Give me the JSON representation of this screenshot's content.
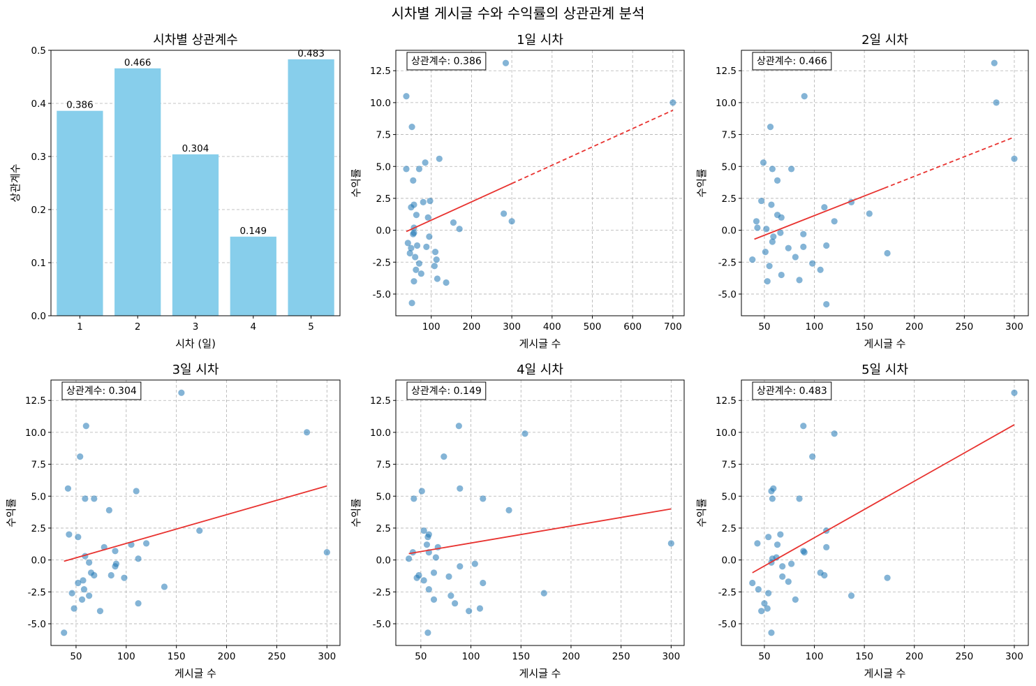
{
  "suptitle": "시차별 게시글 수와 수익률의 상관관계 분석",
  "colors": {
    "bar": "#87ceeb",
    "point": "#1f77b4",
    "trend": "#e8322f",
    "grid": "#b0b0b0"
  },
  "chart_data": [
    {
      "type": "bar",
      "title": "시차별 상관계수",
      "xlabel": "시차 (일)",
      "ylabel": "상관계수",
      "categories": [
        "1",
        "2",
        "3",
        "4",
        "5"
      ],
      "values": [
        0.386,
        0.466,
        0.304,
        0.149,
        0.483
      ],
      "data_labels": [
        "0.386",
        "0.466",
        "0.304",
        "0.149",
        "0.483"
      ],
      "ylim": [
        0,
        0.5
      ],
      "yticks": [
        0.0,
        0.1,
        0.2,
        0.3,
        0.4,
        0.5
      ],
      "ytick_labels": [
        "0.0",
        "0.1",
        "0.2",
        "0.3",
        "0.4",
        "0.5"
      ],
      "grid": "y, dashed"
    },
    {
      "type": "scatter",
      "title": "1일 시차",
      "xlabel": "게시글 수",
      "ylabel": "수익률",
      "annotation": "상관계수: 0.386",
      "xlim": [
        12,
        728
      ],
      "ylim": [
        -6.7,
        14.1
      ],
      "xticks": [
        100,
        200,
        300,
        400,
        500,
        600,
        700
      ],
      "xtick_labels": [
        "100",
        "200",
        "300",
        "400",
        "500",
        "600",
        "700"
      ],
      "yticks": [
        -5,
        -2.5,
        0,
        2.5,
        5,
        7.5,
        10,
        12.5
      ],
      "ytick_labels": [
        "-5.0",
        "-2.5",
        "0.0",
        "2.5",
        "5.0",
        "7.5",
        "10.0",
        "12.5"
      ],
      "grid": "both, dashed",
      "trend_line": {
        "x": [
          38,
          700
        ],
        "y": [
          -0.1,
          9.4
        ],
        "solid_to": 300
      },
      "points": [
        [
          285,
          13.1
        ],
        [
          38,
          10.5
        ],
        [
          700,
          10.0
        ],
        [
          52,
          8.1
        ],
        [
          38,
          4.8
        ],
        [
          70,
          4.8
        ],
        [
          85,
          5.3
        ],
        [
          120,
          5.6
        ],
        [
          55,
          3.9
        ],
        [
          50,
          1.8
        ],
        [
          57,
          2.0
        ],
        [
          80,
          2.2
        ],
        [
          97,
          2.3
        ],
        [
          63,
          1.2
        ],
        [
          92,
          1.0
        ],
        [
          280,
          1.3
        ],
        [
          300,
          0.7
        ],
        [
          155,
          0.6
        ],
        [
          170,
          0.1
        ],
        [
          57,
          0.2
        ],
        [
          57,
          -0.2
        ],
        [
          55,
          -0.3
        ],
        [
          95,
          -0.5
        ],
        [
          42,
          -1.0
        ],
        [
          65,
          -1.2
        ],
        [
          88,
          -1.3
        ],
        [
          50,
          -1.4
        ],
        [
          47,
          -1.8
        ],
        [
          110,
          -1.7
        ],
        [
          60,
          -2.1
        ],
        [
          113,
          -2.3
        ],
        [
          70,
          -2.6
        ],
        [
          108,
          -2.8
        ],
        [
          62,
          -3.1
        ],
        [
          75,
          -3.4
        ],
        [
          57,
          -4.0
        ],
        [
          115,
          -3.8
        ],
        [
          137,
          -4.1
        ],
        [
          52,
          -5.7
        ]
      ]
    },
    {
      "type": "scatter",
      "title": "2일 시차",
      "xlabel": "게시글 수",
      "ylabel": "수익률",
      "annotation": "상관계수: 0.466",
      "xlim": [
        27,
        314
      ],
      "ylim": [
        -6.7,
        14.1
      ],
      "xticks": [
        50,
        100,
        150,
        200,
        250,
        300
      ],
      "xtick_labels": [
        "50",
        "100",
        "150",
        "200",
        "250",
        "300"
      ],
      "yticks": [
        -5,
        -2.5,
        0,
        2.5,
        5,
        7.5,
        10,
        12.5
      ],
      "ytick_labels": [
        "-5.0",
        "-2.5",
        "0.0",
        "2.5",
        "5.0",
        "7.5",
        "10.0",
        "12.5"
      ],
      "grid": "both, dashed",
      "trend_line": {
        "x": [
          40,
          300
        ],
        "y": [
          -0.7,
          7.3
        ],
        "solid_to": 170
      },
      "points": [
        [
          280,
          13.1
        ],
        [
          282,
          10.0
        ],
        [
          90,
          10.5
        ],
        [
          56,
          8.1
        ],
        [
          300,
          5.6
        ],
        [
          49,
          5.3
        ],
        [
          58,
          4.8
        ],
        [
          77,
          4.8
        ],
        [
          63,
          3.9
        ],
        [
          47,
          2.3
        ],
        [
          57,
          2.0
        ],
        [
          137,
          2.2
        ],
        [
          110,
          1.8
        ],
        [
          63,
          1.2
        ],
        [
          67,
          1.0
        ],
        [
          155,
          1.3
        ],
        [
          120,
          0.7
        ],
        [
          42,
          0.7
        ],
        [
          43,
          0.2
        ],
        [
          52,
          0.1
        ],
        [
          66,
          -0.2
        ],
        [
          89,
          -0.3
        ],
        [
          59,
          -0.5
        ],
        [
          58,
          -0.9
        ],
        [
          89,
          -1.3
        ],
        [
          74,
          -1.4
        ],
        [
          112,
          -1.2
        ],
        [
          51,
          -1.7
        ],
        [
          173,
          -1.8
        ],
        [
          81,
          -2.1
        ],
        [
          38,
          -2.3
        ],
        [
          98,
          -2.6
        ],
        [
          55,
          -2.8
        ],
        [
          106,
          -3.1
        ],
        [
          67,
          -3.5
        ],
        [
          85,
          -3.9
        ],
        [
          53,
          -4.0
        ],
        [
          112,
          -5.8
        ]
      ]
    },
    {
      "type": "scatter",
      "title": "3일 시차",
      "xlabel": "게시글 수",
      "ylabel": "수익률",
      "annotation": "상관계수: 0.304",
      "xlim": [
        25,
        313
      ],
      "ylim": [
        -6.7,
        14.1
      ],
      "xticks": [
        50,
        100,
        150,
        200,
        250,
        300
      ],
      "xtick_labels": [
        "50",
        "100",
        "150",
        "200",
        "250",
        "300"
      ],
      "yticks": [
        -5,
        -2.5,
        0,
        2.5,
        5,
        7.5,
        10,
        12.5
      ],
      "ytick_labels": [
        "-5.0",
        "-2.5",
        "0.0",
        "2.5",
        "5.0",
        "7.5",
        "10.0",
        "12.5"
      ],
      "grid": "both, dashed",
      "trend_line": {
        "x": [
          38,
          300
        ],
        "y": [
          -0.1,
          5.8
        ]
      },
      "points": [
        [
          155,
          13.1
        ],
        [
          60,
          10.5
        ],
        [
          280,
          10.0
        ],
        [
          54,
          8.1
        ],
        [
          42,
          5.6
        ],
        [
          59,
          4.8
        ],
        [
          68,
          4.8
        ],
        [
          110,
          5.4
        ],
        [
          83,
          3.9
        ],
        [
          43,
          2.0
        ],
        [
          52,
          1.8
        ],
        [
          173,
          2.3
        ],
        [
          78,
          1.0
        ],
        [
          89,
          0.7
        ],
        [
          105,
          1.2
        ],
        [
          120,
          1.3
        ],
        [
          300,
          0.6
        ],
        [
          59,
          0.3
        ],
        [
          112,
          0.1
        ],
        [
          63,
          -0.2
        ],
        [
          90,
          -0.3
        ],
        [
          89,
          -0.5
        ],
        [
          65,
          -1.0
        ],
        [
          68,
          -1.2
        ],
        [
          85,
          -1.2
        ],
        [
          98,
          -1.4
        ],
        [
          57,
          -1.6
        ],
        [
          52,
          -1.8
        ],
        [
          138,
          -2.1
        ],
        [
          58,
          -2.3
        ],
        [
          46,
          -2.6
        ],
        [
          63,
          -2.8
        ],
        [
          56,
          -3.1
        ],
        [
          112,
          -3.4
        ],
        [
          48,
          -3.8
        ],
        [
          74,
          -4.0
        ],
        [
          38,
          -5.7
        ]
      ]
    },
    {
      "type": "scatter",
      "title": "4일 시차",
      "xlabel": "게시글 수",
      "ylabel": "수익률",
      "annotation": "상관계수: 0.149",
      "xlim": [
        25,
        313
      ],
      "ylim": [
        -6.7,
        14.1
      ],
      "xticks": [
        50,
        100,
        150,
        200,
        250,
        300
      ],
      "xtick_labels": [
        "50",
        "100",
        "150",
        "200",
        "250",
        "300"
      ],
      "yticks": [
        -5,
        -2.5,
        0,
        2.5,
        5,
        7.5,
        10,
        12.5
      ],
      "ytick_labels": [
        "-5.0",
        "-2.5",
        "0.0",
        "2.5",
        "5.0",
        "7.5",
        "10.0",
        "12.5"
      ],
      "grid": "both, dashed",
      "trend_line": {
        "x": [
          38,
          300
        ],
        "y": [
          0.5,
          4.0
        ]
      },
      "points": [
        [
          88,
          10.5
        ],
        [
          154,
          9.9
        ],
        [
          73,
          8.1
        ],
        [
          89,
          5.6
        ],
        [
          51,
          5.4
        ],
        [
          43,
          4.8
        ],
        [
          112,
          4.8
        ],
        [
          138,
          3.9
        ],
        [
          53,
          2.3
        ],
        [
          58,
          2.0
        ],
        [
          56,
          1.2
        ],
        [
          67,
          1.0
        ],
        [
          57,
          1.8
        ],
        [
          300,
          1.3
        ],
        [
          42,
          0.6
        ],
        [
          58,
          0.6
        ],
        [
          38,
          0.1
        ],
        [
          65,
          0.2
        ],
        [
          104,
          -0.3
        ],
        [
          89,
          -0.5
        ],
        [
          48,
          -1.2
        ],
        [
          78,
          -1.3
        ],
        [
          63,
          -1.0
        ],
        [
          46,
          -1.4
        ],
        [
          53,
          -1.6
        ],
        [
          112,
          -1.8
        ],
        [
          58,
          -2.3
        ],
        [
          173,
          -2.6
        ],
        [
          80,
          -2.8
        ],
        [
          63,
          -3.1
        ],
        [
          84,
          -3.4
        ],
        [
          109,
          -3.8
        ],
        [
          98,
          -4.0
        ],
        [
          57,
          -5.7
        ]
      ]
    },
    {
      "type": "scatter",
      "title": "5일 시차",
      "xlabel": "게시글 수",
      "ylabel": "수익률",
      "annotation": "상관계수: 0.483",
      "xlim": [
        27,
        314
      ],
      "ylim": [
        -6.7,
        14.1
      ],
      "xticks": [
        50,
        100,
        150,
        200,
        250,
        300
      ],
      "xtick_labels": [
        "50",
        "100",
        "150",
        "200",
        "250",
        "300"
      ],
      "yticks": [
        -5,
        -2.5,
        0,
        2.5,
        5,
        7.5,
        10,
        12.5
      ],
      "ytick_labels": [
        "-5.0",
        "-2.5",
        "0.0",
        "2.5",
        "5.0",
        "7.5",
        "10.0",
        "12.5"
      ],
      "grid": "both, dashed",
      "trend_line": {
        "x": [
          38,
          300
        ],
        "y": [
          -1.0,
          10.6
        ]
      },
      "points": [
        [
          300,
          13.1
        ],
        [
          89,
          10.5
        ],
        [
          120,
          9.9
        ],
        [
          98,
          8.1
        ],
        [
          59,
          5.6
        ],
        [
          57,
          5.4
        ],
        [
          58,
          4.8
        ],
        [
          85,
          4.8
        ],
        [
          112,
          2.3
        ],
        [
          66,
          2.0
        ],
        [
          54,
          1.8
        ],
        [
          43,
          1.3
        ],
        [
          63,
          1.2
        ],
        [
          112,
          1.0
        ],
        [
          89,
          0.7
        ],
        [
          90,
          0.6
        ],
        [
          58,
          0.1
        ],
        [
          62,
          0.2
        ],
        [
          57,
          -0.2
        ],
        [
          77,
          -0.3
        ],
        [
          68,
          -0.5
        ],
        [
          106,
          -1.0
        ],
        [
          68,
          -1.3
        ],
        [
          110,
          -1.2
        ],
        [
          173,
          -1.4
        ],
        [
          74,
          -1.7
        ],
        [
          38,
          -1.8
        ],
        [
          44,
          -2.3
        ],
        [
          54,
          -2.6
        ],
        [
          137,
          -2.8
        ],
        [
          81,
          -3.1
        ],
        [
          50,
          -3.4
        ],
        [
          53,
          -3.8
        ],
        [
          47,
          -4.0
        ],
        [
          57,
          -5.7
        ]
      ]
    }
  ]
}
